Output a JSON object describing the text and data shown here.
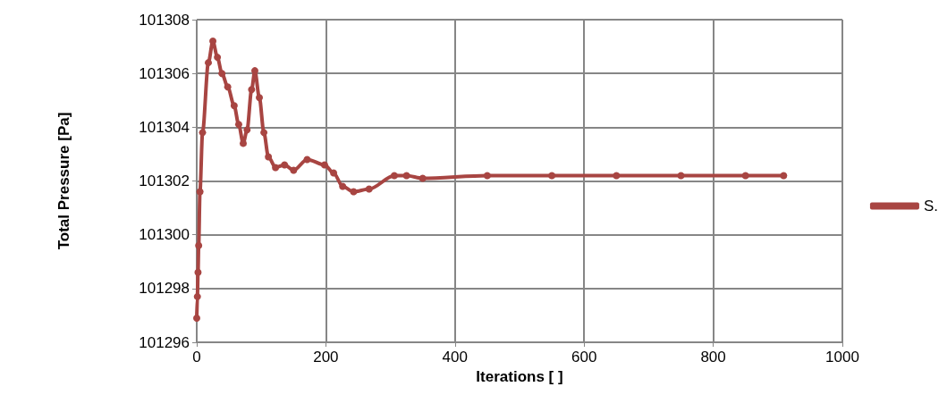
{
  "chart_data": {
    "type": "line",
    "xlabel": "Iterations [ ]",
    "ylabel": "Total Pressure [Pa]",
    "x": [
      0,
      1,
      2,
      3,
      5,
      9,
      18,
      25,
      32,
      39,
      48,
      58,
      65,
      72,
      78,
      85,
      90,
      97,
      104,
      111,
      122,
      136,
      150,
      171,
      198,
      212,
      226,
      243,
      267,
      306,
      325,
      350,
      450,
      550,
      650,
      750,
      850,
      909
    ],
    "series": [
      {
        "name": "S.",
        "color": "#a84542",
        "values": [
          101296.9,
          101297.7,
          101298.6,
          101299.6,
          101301.6,
          101303.8,
          101306.4,
          101307.2,
          101306.6,
          101306.0,
          101305.5,
          101304.8,
          101304.1,
          101303.4,
          101303.9,
          101305.4,
          101306.1,
          101305.1,
          101303.8,
          101302.9,
          101302.5,
          101302.6,
          101302.4,
          101302.8,
          101302.6,
          101302.3,
          101301.8,
          101301.6,
          101301.7,
          101302.2,
          101302.2,
          101302.1,
          101302.2,
          101302.2,
          101302.2,
          101302.2,
          101302.2,
          101302.2
        ]
      }
    ],
    "xlim": [
      0,
      1000
    ],
    "xticks": [
      0,
      200,
      400,
      600,
      800,
      1000
    ],
    "ylim": [
      101296,
      101308
    ],
    "yticks": [
      101296,
      101298,
      101300,
      101302,
      101304,
      101306,
      101308
    ],
    "grid": true,
    "legend": "right",
    "marker": "circle",
    "line_style": "solid"
  }
}
